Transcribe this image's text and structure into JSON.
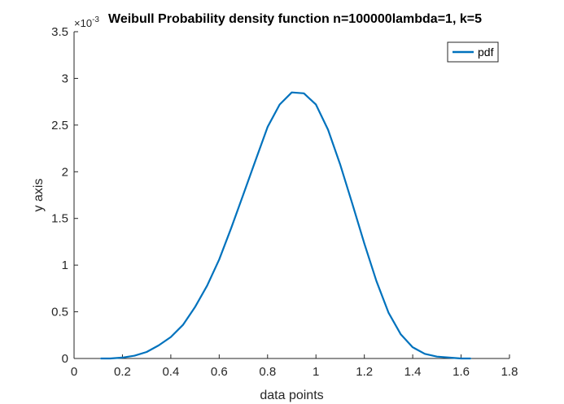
{
  "chart_data": {
    "type": "line",
    "title": "Weibull Probability density function n=100000lambda=1, k=5",
    "xlabel": "data points",
    "ylabel": "y axis",
    "y_exponent_label": "×10",
    "y_exponent_power": "-3",
    "xlim": [
      0,
      1.8
    ],
    "ylim": [
      0,
      3.5
    ],
    "grid": false,
    "legend_placement": "top-right",
    "x_ticks": [
      0,
      0.2,
      0.4,
      0.6,
      0.8,
      1,
      1.2,
      1.4,
      1.6,
      1.8
    ],
    "x_tick_labels": [
      "0",
      "0.2",
      "0.4",
      "0.6",
      "0.8",
      "1",
      "1.2",
      "1.4",
      "1.6",
      "1.8"
    ],
    "y_ticks": [
      0,
      0.5,
      1,
      1.5,
      2,
      2.5,
      3,
      3.5
    ],
    "y_tick_labels": [
      "0",
      "0.5",
      "1",
      "1.5",
      "2",
      "2.5",
      "3",
      "3.5"
    ],
    "series": [
      {
        "name": "pdf",
        "color": "#0072BD",
        "x": [
          0.11,
          0.15,
          0.2,
          0.25,
          0.3,
          0.35,
          0.4,
          0.45,
          0.5,
          0.55,
          0.6,
          0.65,
          0.7,
          0.75,
          0.8,
          0.85,
          0.9,
          0.95,
          1.0,
          1.05,
          1.1,
          1.15,
          1.2,
          1.25,
          1.3,
          1.35,
          1.4,
          1.45,
          1.5,
          1.55,
          1.6,
          1.64
        ],
        "y": [
          0.0,
          0.0,
          0.01,
          0.03,
          0.07,
          0.14,
          0.23,
          0.36,
          0.55,
          0.78,
          1.06,
          1.4,
          1.76,
          2.12,
          2.48,
          2.72,
          2.85,
          2.84,
          2.72,
          2.45,
          2.08,
          1.66,
          1.23,
          0.83,
          0.49,
          0.26,
          0.12,
          0.05,
          0.02,
          0.01,
          0.0,
          0.0
        ]
      }
    ]
  }
}
